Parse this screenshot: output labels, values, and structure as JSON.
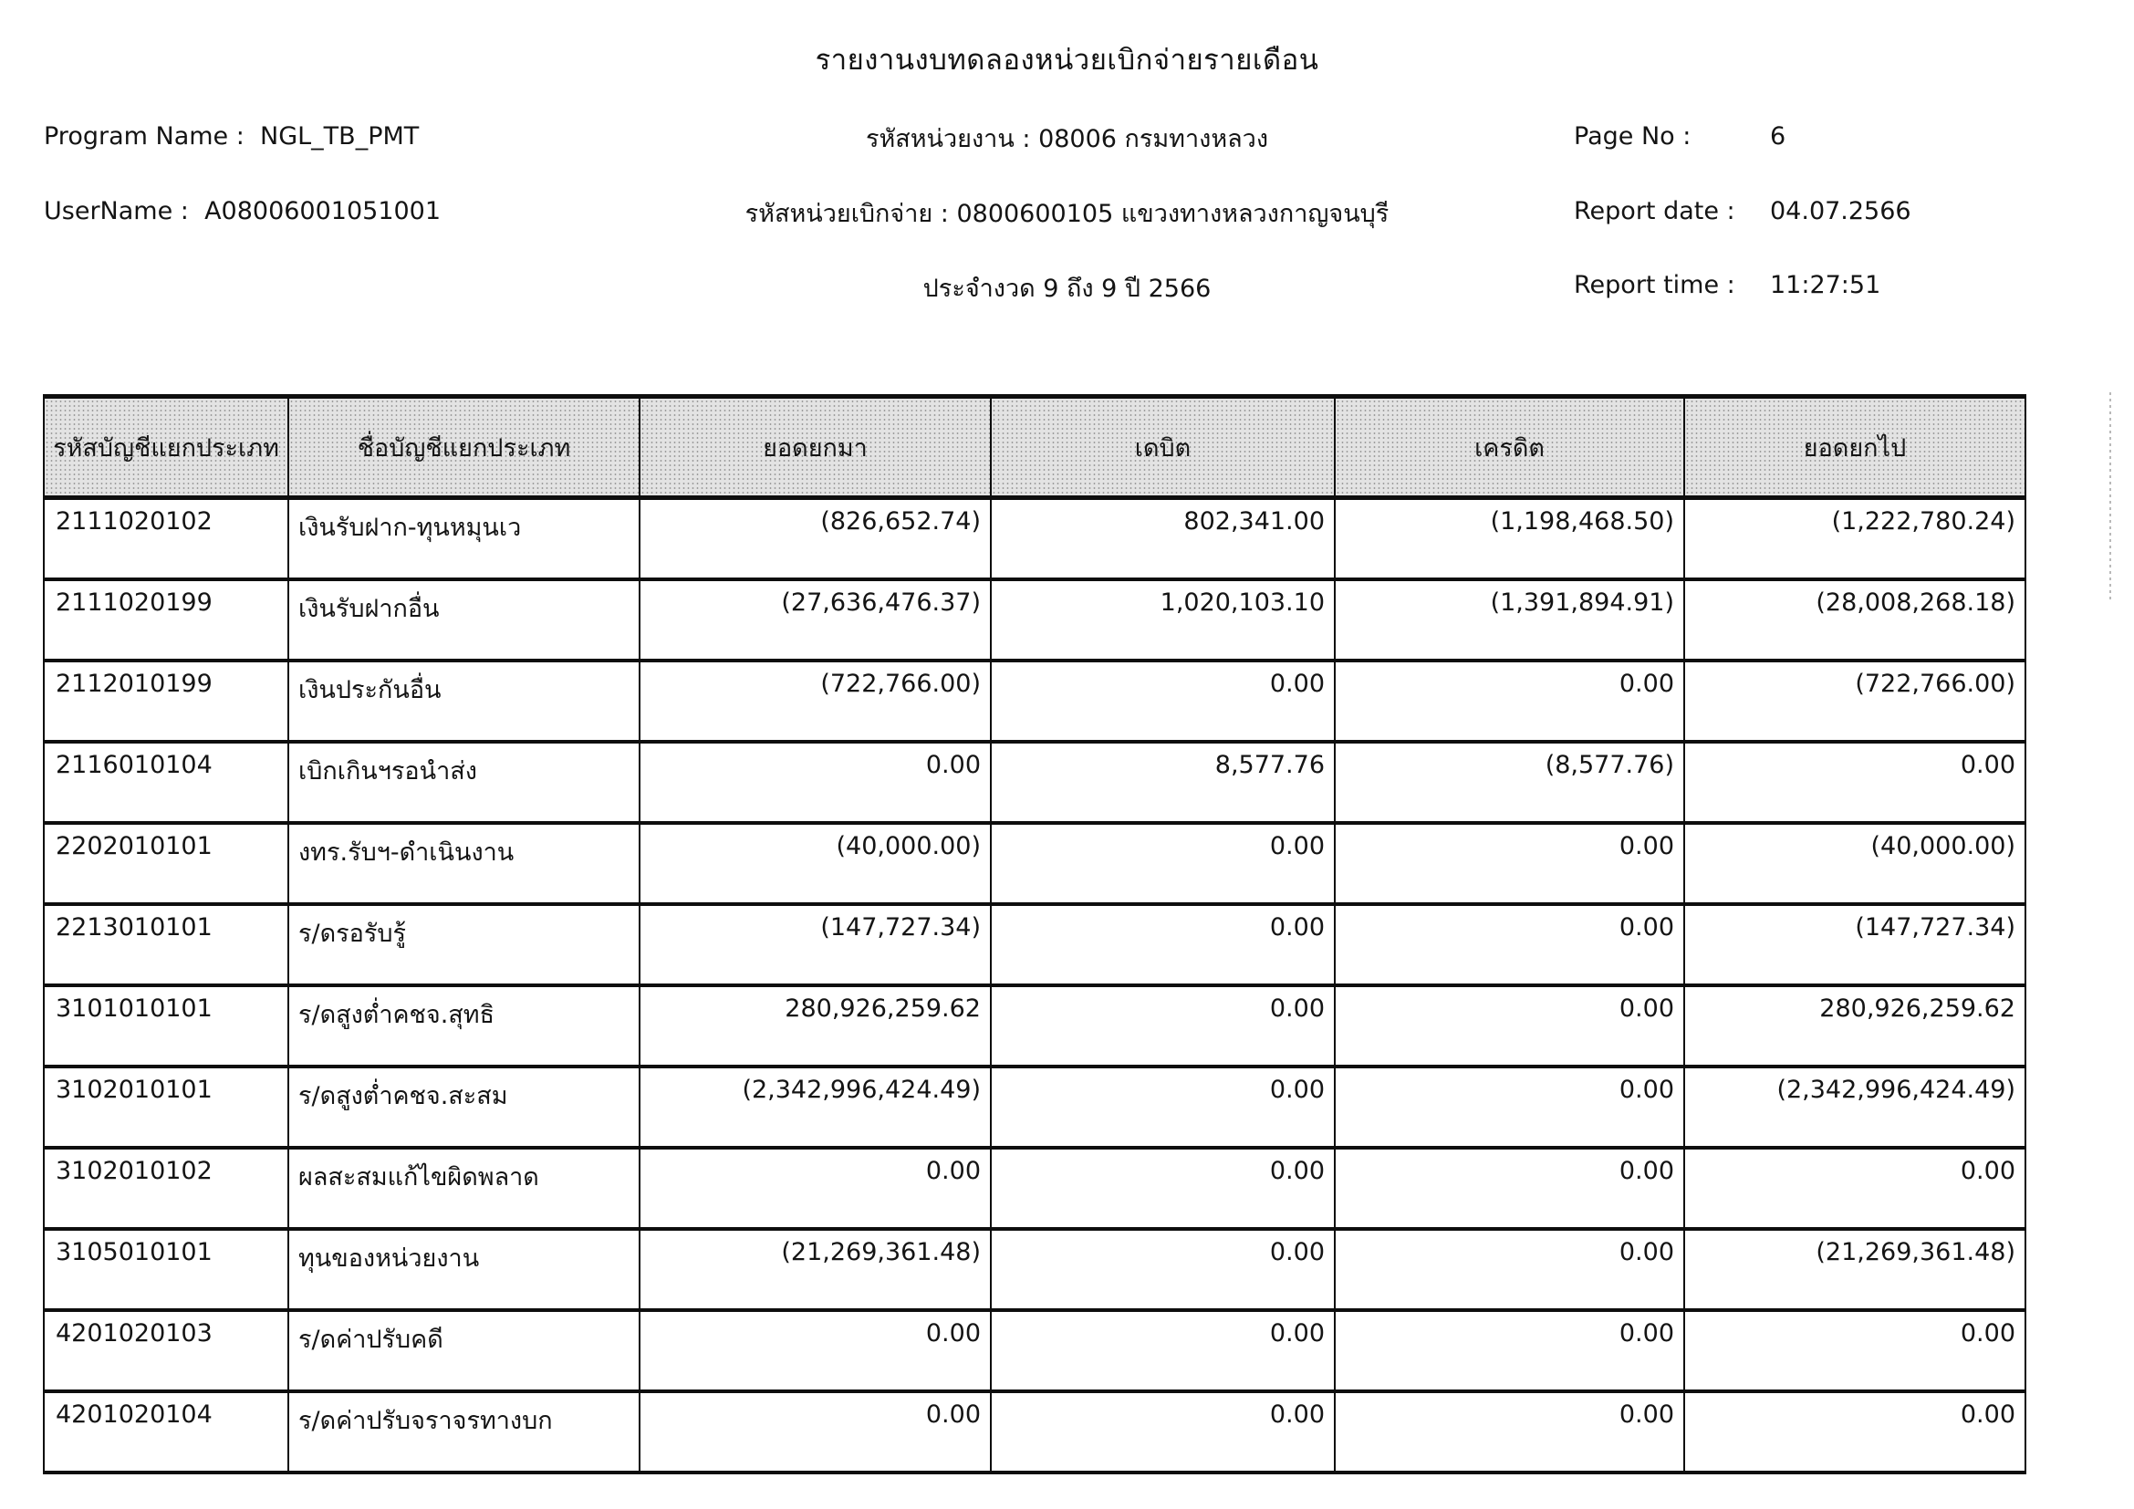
{
  "document": {
    "title": "รายงานงบทดลองหน่วยเบิกจ่ายรายเดือน",
    "program_name_label": "Program Name :",
    "program_name_value": "NGL_TB_PMT",
    "username_label": "UserName :",
    "username_value": "A08006001051001",
    "agency_line": "รหัสหน่วยงาน : 08006 กรมทางหลวง",
    "disbursement_line": "รหัสหน่วยเบิกจ่าย : 0800600105 แขวงทางหลวงกาญจนบุรี",
    "period_line": "ประจำงวด 9 ถึง 9 ปี 2566",
    "page_no_label": "Page No :",
    "page_no_value": "6",
    "report_date_label": "Report date :",
    "report_date_value": "04.07.2566",
    "report_time_label": "Report time :",
    "report_time_value": "11:27:51"
  },
  "table": {
    "headers": [
      "รหัสบัญชีแยกประเภท",
      "ชื่อบัญชีแยกประเภท",
      "ยอดยกมา",
      "เดบิต",
      "เครดิต",
      "ยอดยกไป"
    ],
    "rows": [
      {
        "code": "2111020102",
        "name": "เงินรับฝาก-ทุนหมุนเว",
        "brought_forward": "(826,652.74)",
        "debit": "802,341.00",
        "credit": "(1,198,468.50)",
        "carried_forward": "(1,222,780.24)"
      },
      {
        "code": "2111020199",
        "name": "เงินรับฝากอื่น",
        "brought_forward": "(27,636,476.37)",
        "debit": "1,020,103.10",
        "credit": "(1,391,894.91)",
        "carried_forward": "(28,008,268.18)"
      },
      {
        "code": "2112010199",
        "name": "เงินประกันอื่น",
        "brought_forward": "(722,766.00)",
        "debit": "0.00",
        "credit": "0.00",
        "carried_forward": "(722,766.00)"
      },
      {
        "code": "2116010104",
        "name": "เบิกเกินฯรอนำส่ง",
        "brought_forward": "0.00",
        "debit": "8,577.76",
        "credit": "(8,577.76)",
        "carried_forward": "0.00"
      },
      {
        "code": "2202010101",
        "name": "งทร.รับฯ-ดำเนินงาน",
        "brought_forward": "(40,000.00)",
        "debit": "0.00",
        "credit": "0.00",
        "carried_forward": "(40,000.00)"
      },
      {
        "code": "2213010101",
        "name": "ร/ดรอรับรู้",
        "brought_forward": "(147,727.34)",
        "debit": "0.00",
        "credit": "0.00",
        "carried_forward": "(147,727.34)"
      },
      {
        "code": "3101010101",
        "name": "ร/ดสูงต่ำคชจ.สุทธิ",
        "brought_forward": "280,926,259.62",
        "debit": "0.00",
        "credit": "0.00",
        "carried_forward": "280,926,259.62"
      },
      {
        "code": "3102010101",
        "name": "ร/ดสูงต่ำคชจ.สะสม",
        "brought_forward": "(2,342,996,424.49)",
        "debit": "0.00",
        "credit": "0.00",
        "carried_forward": "(2,342,996,424.49)"
      },
      {
        "code": "3102010102",
        "name": "ผลสะสมแก้ไขผิดพลาด",
        "brought_forward": "0.00",
        "debit": "0.00",
        "credit": "0.00",
        "carried_forward": "0.00"
      },
      {
        "code": "3105010101",
        "name": "ทุนของหน่วยงาน",
        "brought_forward": "(21,269,361.48)",
        "debit": "0.00",
        "credit": "0.00",
        "carried_forward": "(21,269,361.48)"
      },
      {
        "code": "4201020103",
        "name": "ร/ดค่าปรับคดี",
        "brought_forward": "0.00",
        "debit": "0.00",
        "credit": "0.00",
        "carried_forward": "0.00"
      },
      {
        "code": "4201020104",
        "name": "ร/ดค่าปรับจราจรทางบก",
        "brought_forward": "0.00",
        "debit": "0.00",
        "credit": "0.00",
        "carried_forward": "0.00"
      }
    ]
  }
}
